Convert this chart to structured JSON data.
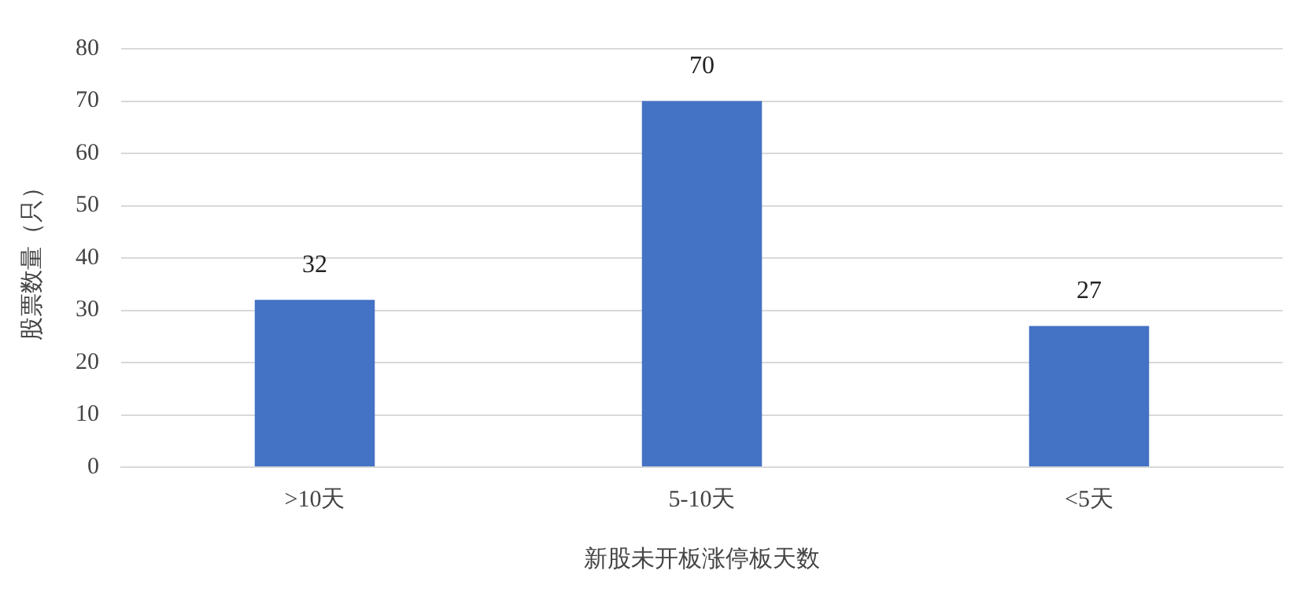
{
  "chart_data": {
    "type": "bar",
    "xlabel": "新股未开板涨停板天数",
    "ylabel": "股票数量（只）",
    "categories": [
      ">10天",
      "5-10天",
      "<5天"
    ],
    "values": [
      32,
      70,
      27
    ],
    "color": "#4472c4",
    "ylim": [
      0,
      80
    ],
    "yticks": [
      0,
      10,
      20,
      30,
      40,
      50,
      60,
      70,
      80
    ],
    "grid": "y",
    "data_labels": true,
    "legend": false
  }
}
